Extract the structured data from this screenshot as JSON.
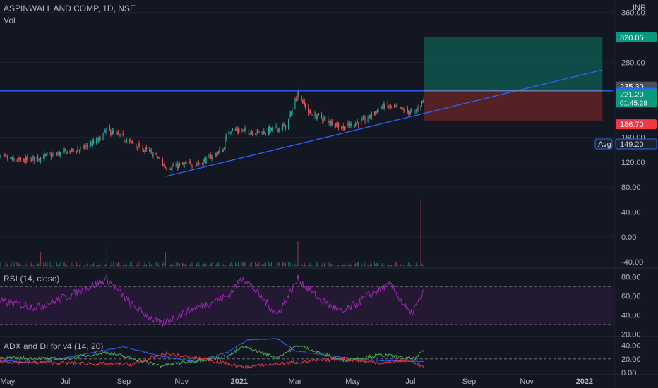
{
  "header": {
    "title": "ASPINWALL AND COMP, 1D, NSE",
    "vol_label": "Vol",
    "currency": "INR"
  },
  "colors": {
    "bg": "#131722",
    "grid": "#1f2330",
    "text": "#b2b5be",
    "up": "#26a69a",
    "down": "#ef5350",
    "trendline": "#2962ff",
    "target_zone": "#0f5f55",
    "stop_zone": "#6b2525",
    "rsi": "#9c27b0",
    "adx": "#2962ff",
    "di_plus": "#4caf50",
    "di_minus": "#f23645"
  },
  "chart_data": [
    {
      "type": "candlestick",
      "panel": "price",
      "x_ticks": [
        "May",
        "Jul",
        "Sep",
        "Nov",
        "2021",
        "Mar",
        "May",
        "Jul",
        "Sep",
        "Nov",
        "2022"
      ],
      "y_ticks": [
        "360.00",
        "280.00",
        "160.00",
        "120.00",
        "80.00",
        "40.00",
        "0.00",
        "-40.00"
      ],
      "ylim": [
        -50,
        380
      ],
      "ohlc_knots": [
        {
          "date": "2020-04-20",
          "close": 128
        },
        {
          "date": "2020-05-15",
          "close": 122
        },
        {
          "date": "2020-06-20",
          "close": 132
        },
        {
          "date": "2020-07-20",
          "close": 142
        },
        {
          "date": "2020-08-05",
          "close": 155
        },
        {
          "date": "2020-08-14",
          "close": 172
        },
        {
          "date": "2020-09-10",
          "close": 150
        },
        {
          "date": "2020-10-05",
          "close": 130
        },
        {
          "date": "2020-10-15",
          "close": 112
        },
        {
          "date": "2020-11-20",
          "close": 118
        },
        {
          "date": "2020-12-15",
          "close": 140
        },
        {
          "date": "2020-12-20",
          "close": 172
        },
        {
          "date": "2021-01-25",
          "close": 168
        },
        {
          "date": "2021-02-20",
          "close": 178
        },
        {
          "date": "2021-03-04",
          "close": 232
        },
        {
          "date": "2021-03-15",
          "close": 200
        },
        {
          "date": "2021-04-20",
          "close": 176
        },
        {
          "date": "2021-05-15",
          "close": 188
        },
        {
          "date": "2021-06-01",
          "close": 210
        },
        {
          "date": "2021-06-20",
          "close": 205
        },
        {
          "date": "2021-07-05",
          "close": 198
        },
        {
          "date": "2021-07-15",
          "close": 221
        }
      ],
      "volume_spikes": [
        {
          "date": "2020-06-05",
          "value": 20
        },
        {
          "date": "2020-08-14",
          "value": 32
        },
        {
          "date": "2020-10-15",
          "value": 20
        },
        {
          "date": "2021-03-04",
          "value": 35
        },
        {
          "date": "2021-06-20",
          "value": 25
        },
        {
          "date": "2021-07-12",
          "value": 95
        }
      ],
      "levels": {
        "resistance": {
          "value": 234.25,
          "label": "234.25"
        },
        "prev_high": {
          "value": 235.3,
          "label": "235.30"
        },
        "target": {
          "value": 320.05,
          "label": "320.05"
        },
        "stop": {
          "value": 186.7,
          "label": "186.70"
        },
        "last": {
          "value": 221.2,
          "label": "221.20",
          "countdown": "01:45:28"
        },
        "avg": {
          "value": 149.2,
          "label": "149.20",
          "prefix": "Avg"
        }
      },
      "trendline": {
        "from": {
          "date": "2020-10-15",
          "value": 97
        },
        "to": {
          "date": "2022-01-20",
          "value": 268
        }
      },
      "position_box": {
        "start": "2021-07-15",
        "end": "2022-01-20",
        "entry": 234.25,
        "target": 320.05,
        "stop": 186.7
      }
    },
    {
      "type": "line",
      "panel": "rsi",
      "title": "RSI (14, close)",
      "y_ticks": [
        "80.00",
        "60.00",
        "40.00",
        "20.00"
      ],
      "ylim": [
        18,
        88
      ],
      "bands": [
        30,
        70
      ],
      "knots": [
        {
          "date": "2020-04-20",
          "value": 55
        },
        {
          "date": "2020-06-01",
          "value": 48
        },
        {
          "date": "2020-07-10",
          "value": 62
        },
        {
          "date": "2020-08-14",
          "value": 78
        },
        {
          "date": "2020-09-10",
          "value": 50
        },
        {
          "date": "2020-10-10",
          "value": 30
        },
        {
          "date": "2020-11-10",
          "value": 45
        },
        {
          "date": "2020-12-20",
          "value": 60
        },
        {
          "date": "2021-01-05",
          "value": 80
        },
        {
          "date": "2021-02-10",
          "value": 40
        },
        {
          "date": "2021-03-04",
          "value": 78
        },
        {
          "date": "2021-03-25",
          "value": 58
        },
        {
          "date": "2021-04-20",
          "value": 42
        },
        {
          "date": "2021-05-20",
          "value": 62
        },
        {
          "date": "2021-06-10",
          "value": 72
        },
        {
          "date": "2021-07-01",
          "value": 40
        },
        {
          "date": "2021-07-15",
          "value": 63
        }
      ]
    },
    {
      "type": "line",
      "panel": "adx",
      "title": "ADX and DI for v4 (14, 20)",
      "y_ticks": [
        "40.00",
        "20.00",
        "0.00"
      ],
      "ylim": [
        -2,
        52
      ],
      "threshold": 20,
      "series": [
        {
          "key": "adx",
          "knots": [
            {
              "date": "2020-04-20",
              "value": 18
            },
            {
              "date": "2020-06-01",
              "value": 14
            },
            {
              "date": "2020-08-01",
              "value": 30
            },
            {
              "date": "2020-09-01",
              "value": 38
            },
            {
              "date": "2020-10-10",
              "value": 24
            },
            {
              "date": "2020-11-15",
              "value": 16
            },
            {
              "date": "2020-12-20",
              "value": 30
            },
            {
              "date": "2021-01-10",
              "value": 48
            },
            {
              "date": "2021-02-10",
              "value": 50
            },
            {
              "date": "2021-03-01",
              "value": 32
            },
            {
              "date": "2021-04-10",
              "value": 24
            },
            {
              "date": "2021-05-20",
              "value": 18
            },
            {
              "date": "2021-07-15",
              "value": 16
            }
          ]
        },
        {
          "key": "di_plus",
          "knots": [
            {
              "date": "2020-04-20",
              "value": 22
            },
            {
              "date": "2020-07-01",
              "value": 20
            },
            {
              "date": "2020-08-14",
              "value": 30
            },
            {
              "date": "2020-10-10",
              "value": 10
            },
            {
              "date": "2020-12-20",
              "value": 24
            },
            {
              "date": "2021-01-05",
              "value": 38
            },
            {
              "date": "2021-02-10",
              "value": 22
            },
            {
              "date": "2021-03-04",
              "value": 40
            },
            {
              "date": "2021-04-20",
              "value": 18
            },
            {
              "date": "2021-06-01",
              "value": 26
            },
            {
              "date": "2021-07-05",
              "value": 20
            },
            {
              "date": "2021-07-15",
              "value": 32
            }
          ]
        },
        {
          "key": "di_minus",
          "knots": [
            {
              "date": "2020-04-20",
              "value": 16
            },
            {
              "date": "2020-07-01",
              "value": 14
            },
            {
              "date": "2020-09-10",
              "value": 12
            },
            {
              "date": "2020-10-15",
              "value": 28
            },
            {
              "date": "2020-12-01",
              "value": 18
            },
            {
              "date": "2021-01-05",
              "value": 8
            },
            {
              "date": "2021-02-20",
              "value": 14
            },
            {
              "date": "2021-04-20",
              "value": 20
            },
            {
              "date": "2021-06-01",
              "value": 14
            },
            {
              "date": "2021-07-01",
              "value": 18
            },
            {
              "date": "2021-07-15",
              "value": 8
            }
          ]
        }
      ]
    }
  ]
}
